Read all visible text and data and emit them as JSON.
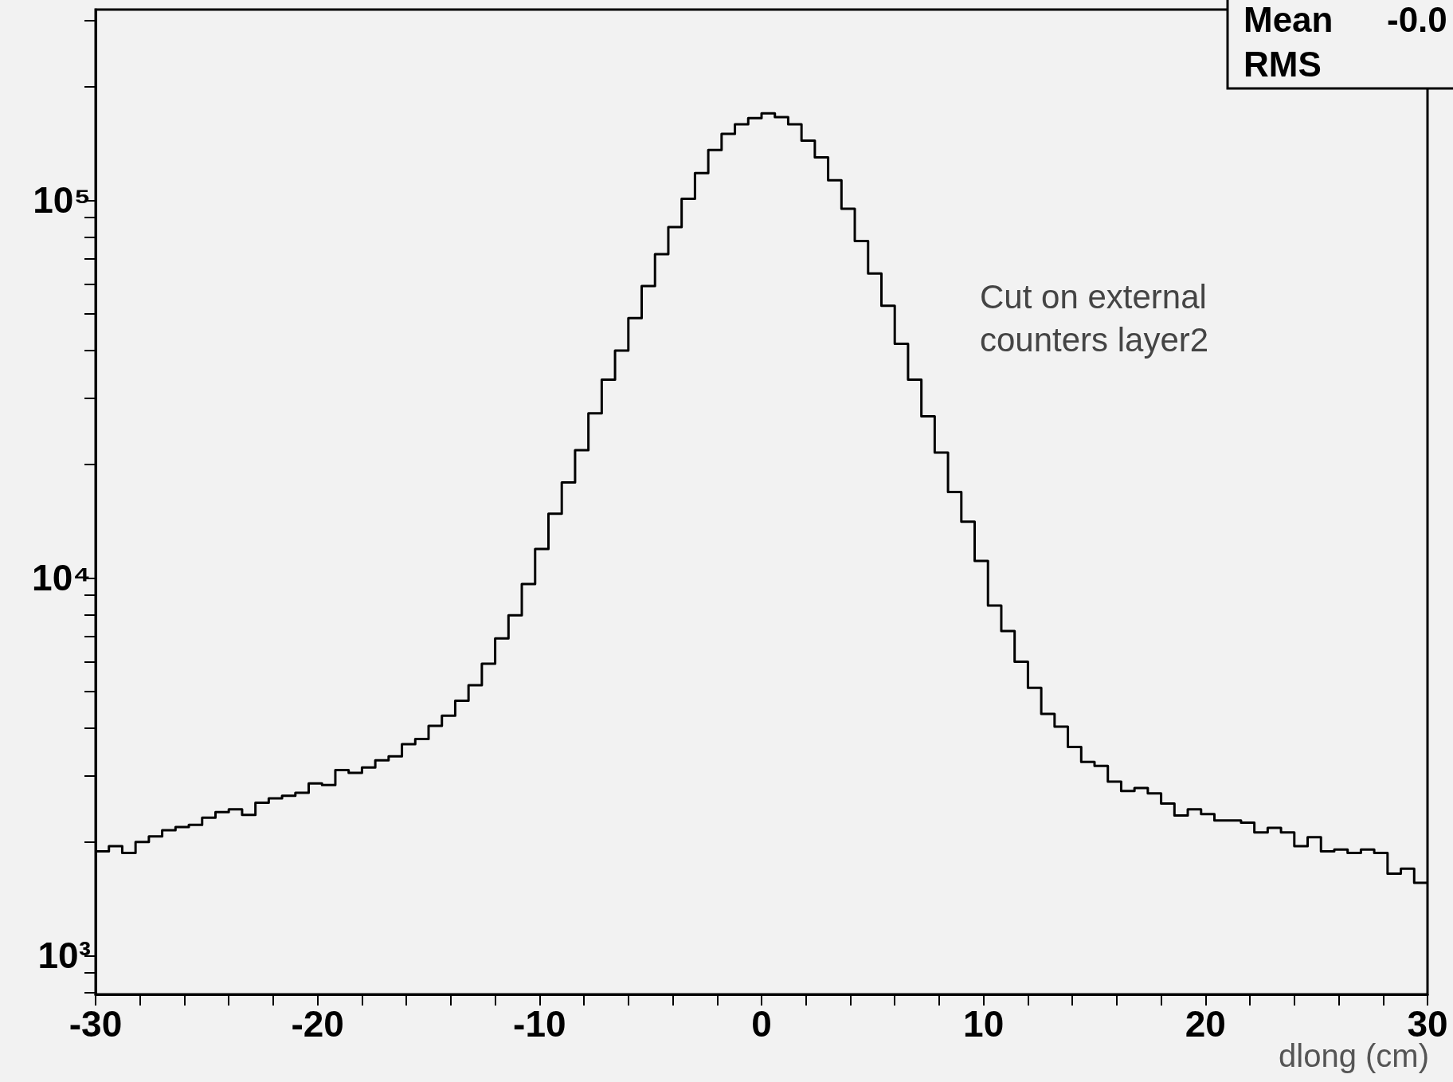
{
  "chart_data": {
    "type": "histogram",
    "xlabel": "dlong (cm)",
    "color": "#000000",
    "log": true,
    "grid": false,
    "bins": [
      -30,
      -29.4,
      -28.8,
      -28.2,
      -27.6,
      -27,
      -26.4,
      -25.8,
      -25.2,
      -24.6,
      -24,
      -23.4,
      -22.8,
      -22.2,
      -21.6,
      -21,
      -20.4,
      -19.8,
      -19.2,
      -18.6,
      -18,
      -17.4,
      -16.8,
      -16.2,
      -15.6,
      -15,
      -14.4,
      -13.8,
      -13.2,
      -12.6,
      -12,
      -11.4,
      -10.8,
      -10.2,
      -9.6,
      -9,
      -8.4,
      -7.8,
      -7.2,
      -6.6,
      -6,
      -5.4,
      -4.8,
      -4.2,
      -3.6,
      -3,
      -2.4,
      -1.8,
      -1.2,
      -0.6,
      0,
      0.6,
      1.2,
      1.8,
      2.4,
      3,
      3.6,
      4.2,
      4.8,
      5.4,
      6,
      6.6,
      7.2,
      7.8,
      8.4,
      9,
      9.6,
      10.2,
      10.8,
      11.4,
      12,
      12.6,
      13.2,
      13.8,
      14.4,
      15,
      15.6,
      16.2,
      16.8,
      17.4,
      18,
      18.6,
      19.2,
      19.8,
      20.4,
      21,
      21.6,
      22.2,
      22.8,
      23.4,
      24,
      24.6,
      25.2,
      25.8,
      26.4,
      27,
      27.6,
      28.2,
      28.8,
      29.4,
      30
    ],
    "values": [
      1890,
      1950,
      1870,
      2000,
      2070,
      2150,
      2190,
      2220,
      2320,
      2400,
      2440,
      2360,
      2540,
      2610,
      2650,
      2700,
      2860,
      2830,
      3100,
      3050,
      3150,
      3290,
      3370,
      3630,
      3750,
      4060,
      4320,
      4730,
      5200,
      5930,
      6920,
      7970,
      9640,
      11940,
      14800,
      17900,
      21800,
      27300,
      33500,
      40000,
      48800,
      59300,
      72000,
      85000,
      101000,
      118000,
      136000,
      150000,
      159000,
      165000,
      170000,
      166000,
      159000,
      144000,
      130000,
      113000,
      95000,
      78000,
      64000,
      52600,
      41700,
      33500,
      26800,
      21500,
      16900,
      14100,
      11100,
      8460,
      7240,
      6000,
      5120,
      4370,
      4040,
      3570,
      3260,
      3180,
      2890,
      2730,
      2780,
      2690,
      2530,
      2350,
      2440,
      2370,
      2280,
      2280,
      2250,
      2120,
      2180,
      2120,
      1950,
      2060,
      1890,
      1910,
      1870,
      1910,
      1870,
      1650,
      1700,
      1560
    ],
    "xlim": [
      -30,
      30
    ],
    "xticks": [
      -30,
      {
        "value": -28,
        "label": null
      },
      {
        "value": -26,
        "label": null
      },
      {
        "value": -24,
        "label": null
      },
      {
        "value": -22,
        "label": null
      },
      -20,
      {
        "value": -18,
        "label": null
      },
      {
        "value": -16,
        "label": null
      },
      {
        "value": -14,
        "label": null
      },
      {
        "value": -12,
        "label": null
      },
      -10,
      {
        "value": -8,
        "label": null
      },
      {
        "value": -6,
        "label": null
      },
      {
        "value": -4,
        "label": null
      },
      {
        "value": -2,
        "label": null
      },
      0,
      {
        "value": 2,
        "label": null
      },
      {
        "value": 4,
        "label": null
      },
      {
        "value": 6,
        "label": null
      },
      {
        "value": 8,
        "label": null
      },
      10,
      {
        "value": 12,
        "label": null
      },
      {
        "value": 14,
        "label": null
      },
      {
        "value": 16,
        "label": null
      },
      {
        "value": 18,
        "label": null
      },
      20,
      {
        "value": 22,
        "label": null
      },
      {
        "value": 24,
        "label": null
      },
      {
        "value": 26,
        "label": null
      },
      {
        "value": 28,
        "label": null
      },
      30
    ],
    "ylim": [
      790,
      320000
    ],
    "yticks": [
      {
        "value": 800,
        "label": null
      },
      {
        "value": 900,
        "label": null
      },
      {
        "value": 1000,
        "label": "10³"
      },
      {
        "value": 2000,
        "label": null
      },
      {
        "value": 3000,
        "label": null
      },
      {
        "value": 4000,
        "label": null
      },
      {
        "value": 5000,
        "label": null
      },
      {
        "value": 6000,
        "label": null
      },
      {
        "value": 7000,
        "label": null
      },
      {
        "value": 8000,
        "label": null
      },
      {
        "value": 9000,
        "label": null
      },
      {
        "value": 10000,
        "label": "10⁴"
      },
      {
        "value": 20000,
        "label": null
      },
      {
        "value": 30000,
        "label": null
      },
      {
        "value": 40000,
        "label": null
      },
      {
        "value": 50000,
        "label": null
      },
      {
        "value": 60000,
        "label": null
      },
      {
        "value": 70000,
        "label": null
      },
      {
        "value": 80000,
        "label": null
      },
      {
        "value": 90000,
        "label": null
      },
      {
        "value": 100000,
        "label": "10⁵"
      },
      {
        "value": 200000,
        "label": null
      },
      {
        "value": 300000,
        "label": null
      }
    ],
    "annotations": [
      "Cut on external counters layer2",
      "Mean",
      "-0.0",
      "RMS"
    ]
  }
}
